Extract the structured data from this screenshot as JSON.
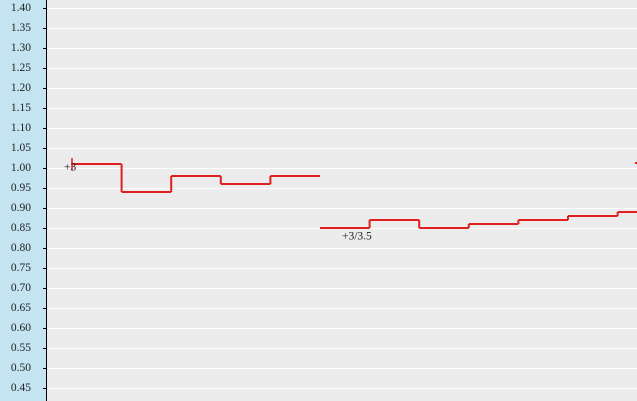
{
  "chart_data": {
    "type": "step",
    "series": [
      {
        "color": "#e0201e",
        "values": [
          1.01,
          0.94,
          0.98,
          0.96,
          0.98,
          null,
          0.85,
          0.87,
          0.85,
          0.86,
          0.87,
          0.88,
          0.89
        ]
      }
    ],
    "annotations": [
      "+3",
      "+3/3.5"
    ],
    "ylim": [
      0.42,
      1.42
    ],
    "yticks": [
      {
        "value": 1.4,
        "label": "1.40"
      },
      1.35,
      {
        "value": 1.3,
        "label": "1.30"
      },
      1.25,
      {
        "value": 1.2,
        "label": "1.20"
      },
      1.15,
      {
        "value": 1.1,
        "label": "1.10"
      },
      1.05,
      {
        "value": 1,
        "label": "1.00"
      },
      0.95,
      {
        "value": 0.9,
        "label": "0.90"
      },
      0.85,
      {
        "value": 0.8,
        "label": "0.80"
      },
      0.75,
      {
        "value": 0.7,
        "label": "0.70"
      },
      0.65,
      {
        "value": 0.6,
        "label": "0.60"
      },
      0.55,
      {
        "value": 0.5,
        "label": "0.50"
      },
      0.45
    ],
    "grid": true
  }
}
